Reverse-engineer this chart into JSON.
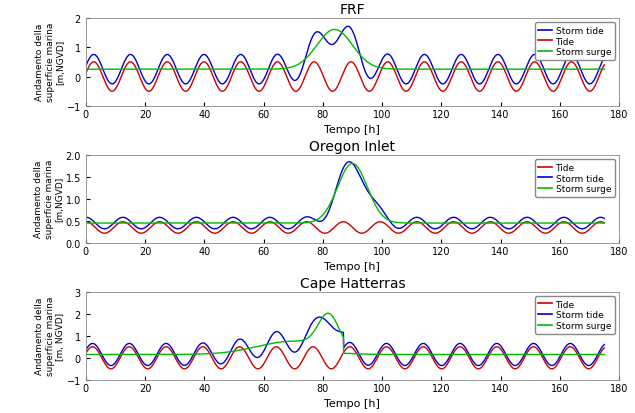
{
  "title1": "FRF",
  "title2": "Oregon Inlet",
  "title3": "Cape Hatterras",
  "xlabel": "Tempo [h]",
  "ylabel12": "Andamento della\nsuperficie marina\n[m,NGVD]",
  "ylabel3": "Andamento della\nsuperficie marina\n[m, NGVD]",
  "xlim": [
    0,
    180
  ],
  "ylim1": [
    -1,
    2
  ],
  "ylim2": [
    0,
    2
  ],
  "ylim3": [
    -1,
    3
  ],
  "yticks1": [
    -1,
    0,
    1,
    2
  ],
  "yticks2": [
    0,
    0.5,
    1.0,
    1.5,
    2.0
  ],
  "yticks3": [
    -1,
    0,
    1,
    2,
    3
  ],
  "xticks": [
    0,
    20,
    40,
    60,
    80,
    100,
    120,
    140,
    160,
    180
  ],
  "colors": {
    "storm_tide": "#0000CC",
    "tide": "#CC0000",
    "storm_surge": "#00BB00"
  },
  "legend1_order": [
    "storm_tide",
    "tide",
    "storm_surge"
  ],
  "legend1_labels": [
    "Storm tide",
    "Tide",
    "Storm surge"
  ],
  "legend2_order": [
    "tide",
    "storm_tide",
    "storm_surge"
  ],
  "legend2_labels": [
    "Tide",
    "Storm tide",
    "Storm surge"
  ],
  "legend3_order": [
    "tide",
    "storm_tide",
    "storm_surge"
  ],
  "legend3_labels": [
    "Tide",
    "Storm tide",
    "Storm surge"
  ],
  "bg_color": "#FFFFFF",
  "plot_bg": "#FFFFFF"
}
